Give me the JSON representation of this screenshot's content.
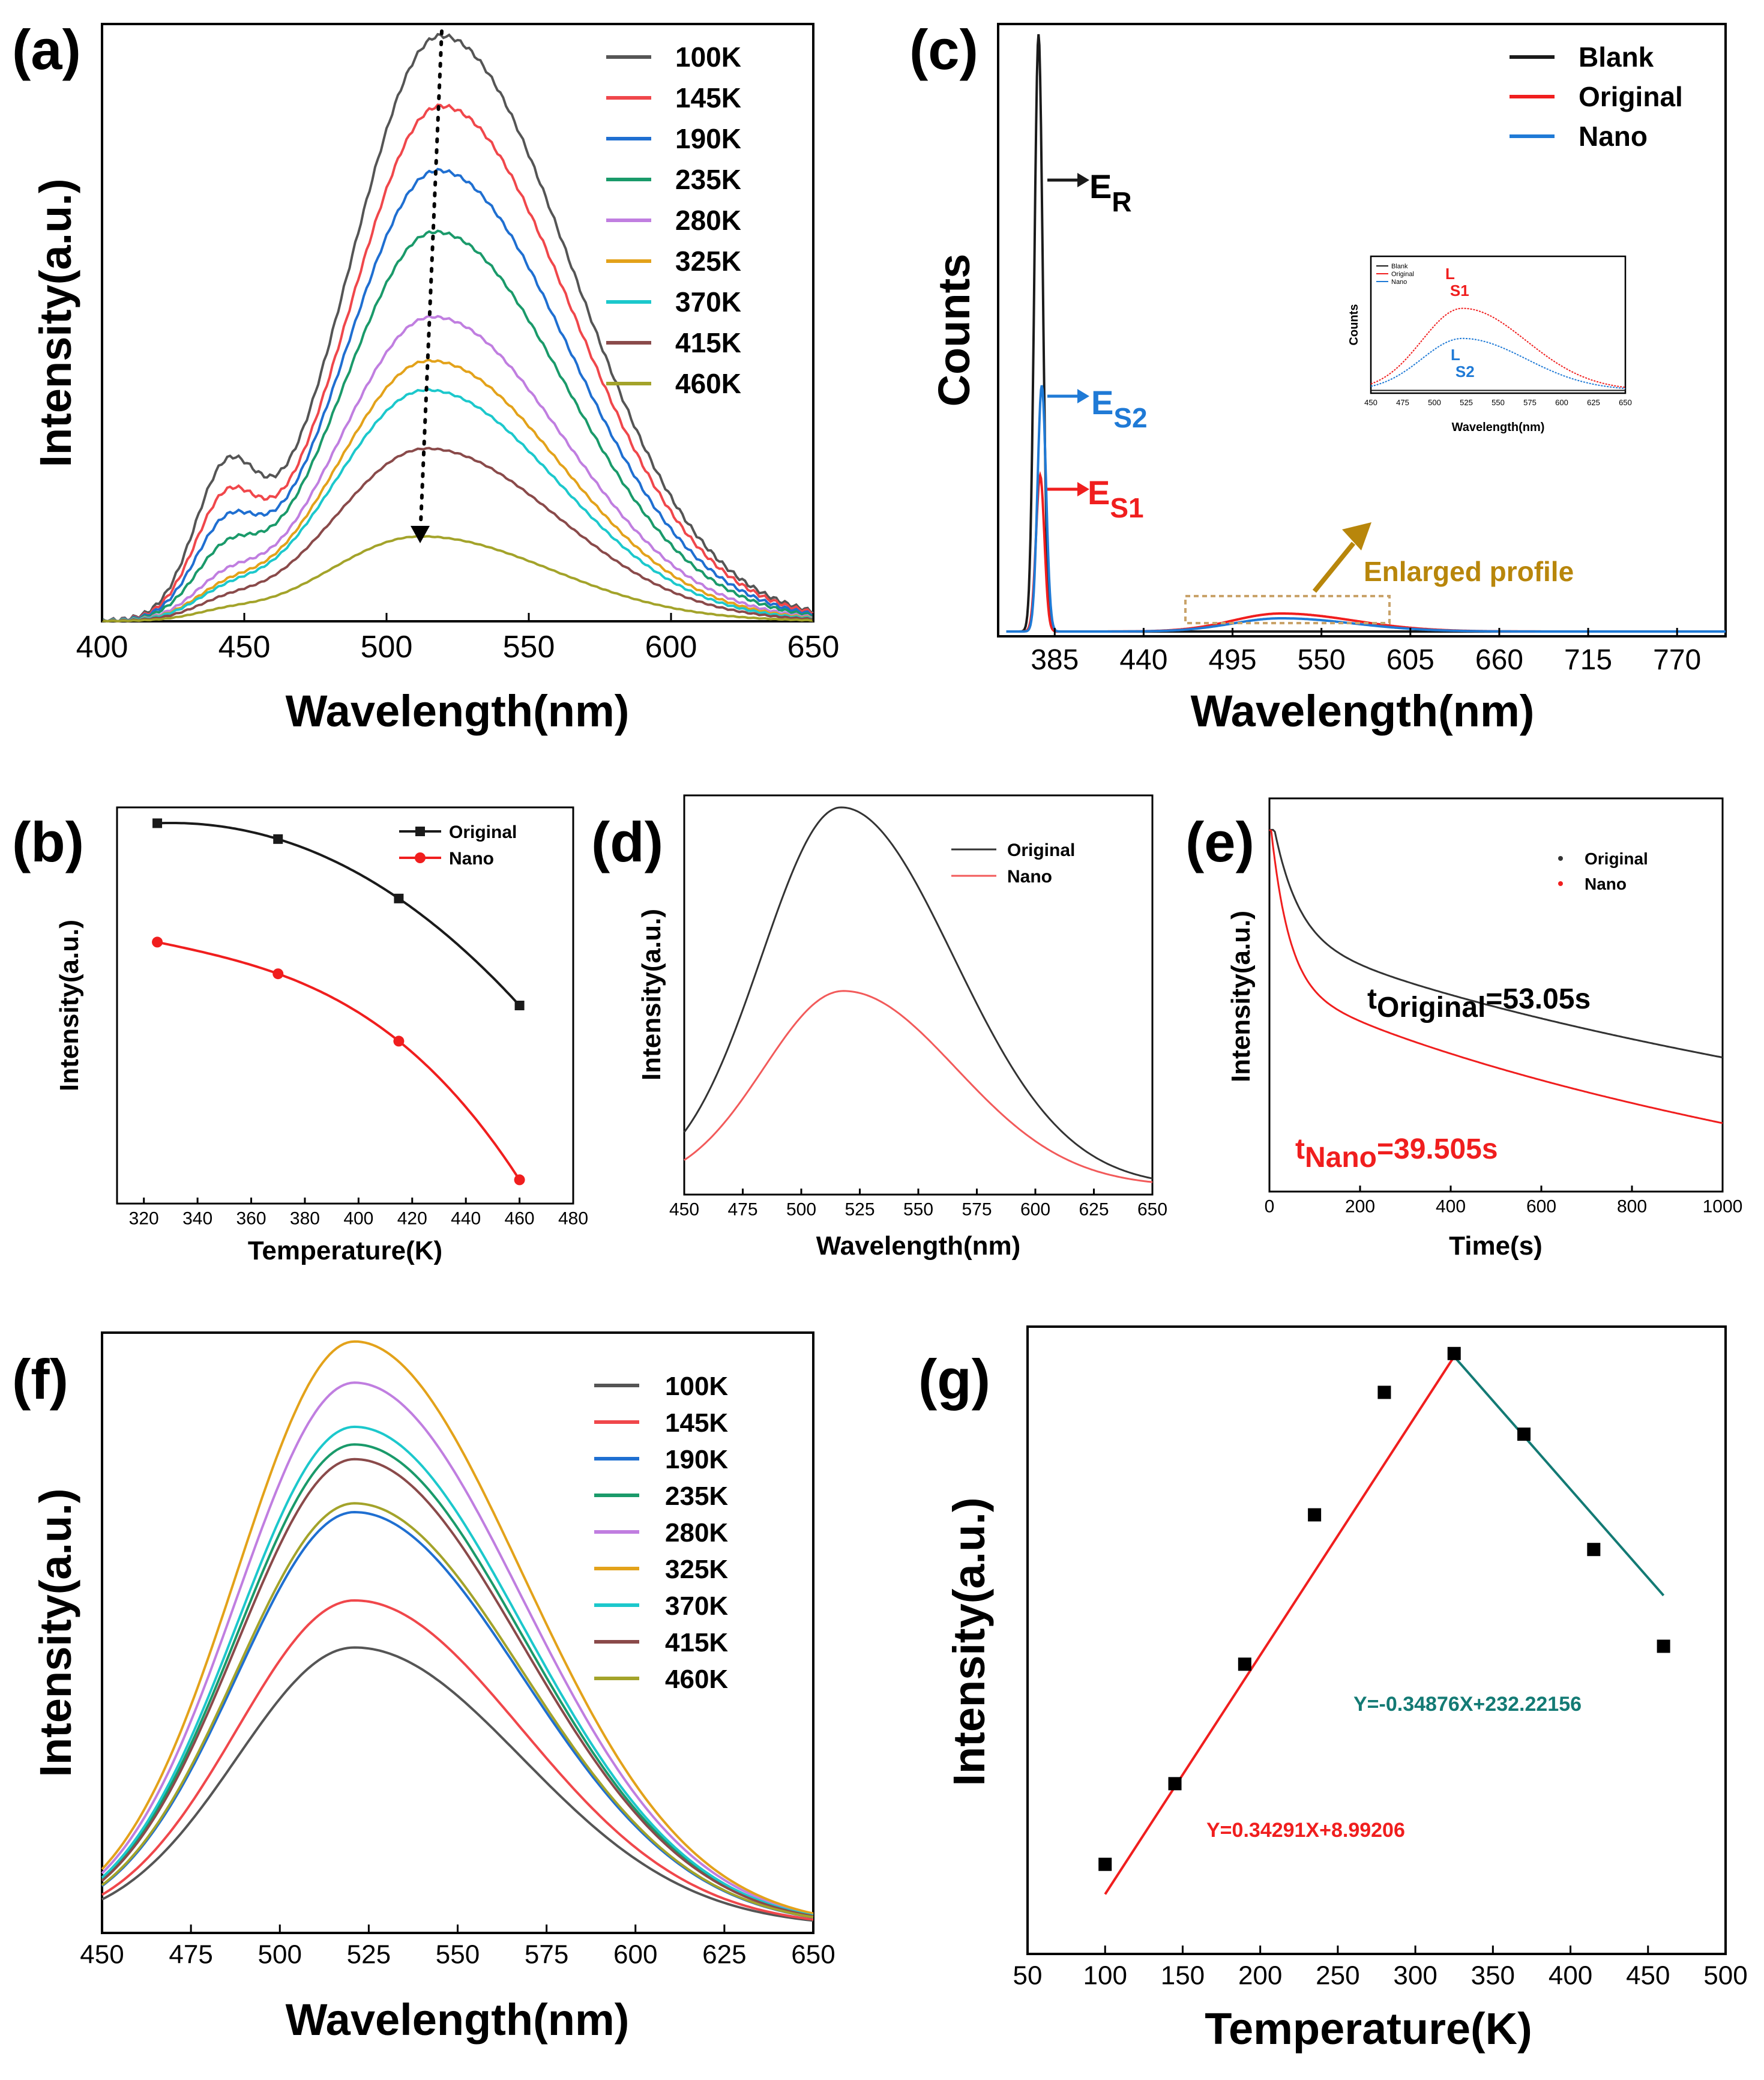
{
  "figure": {
    "panels": {
      "a": {
        "label": "(a)"
      },
      "b": {
        "label": "(b)"
      },
      "c": {
        "label": "(c)"
      },
      "d": {
        "label": "(d)"
      },
      "e": {
        "label": "(e)"
      },
      "f": {
        "label": "(f)"
      },
      "g": {
        "label": "(g)"
      }
    },
    "colors": {
      "100K": "#555555",
      "145K": "#f0474b",
      "190K": "#1f6fd1",
      "235K": "#1a9a6a",
      "280K": "#c07ee0",
      "325K": "#e3a21a",
      "370K": "#1cc8cc",
      "415K": "#8a4a4a",
      "460K": "#a3a32a",
      "black": "#1a1a1a",
      "red": "#f01e1e",
      "blue": "#1f7ad6",
      "teal": "#137a74",
      "gold": "#b8860b"
    }
  },
  "chart_data": [
    {
      "id": "a",
      "type": "line",
      "title": "",
      "xlabel": "Wavelength(nm)",
      "ylabel": "Intensity(a.u.)",
      "xlim": [
        400,
        650
      ],
      "ylim": [
        0,
        1.0
      ],
      "xticks": [
        400,
        450,
        500,
        550,
        600,
        650
      ],
      "series": [
        {
          "name": "100K",
          "peak": 1.0,
          "center": 519,
          "shoulder": 0.215
        },
        {
          "name": "145K",
          "peak": 0.88,
          "center": 519,
          "shoulder": 0.17
        },
        {
          "name": "190K",
          "peak": 0.77,
          "center": 518,
          "shoulder": 0.13
        },
        {
          "name": "235K",
          "peak": 0.665,
          "center": 517,
          "shoulder": 0.09
        },
        {
          "name": "280K",
          "peak": 0.52,
          "center": 516,
          "shoulder": 0.05
        },
        {
          "name": "325K",
          "peak": 0.445,
          "center": 515,
          "shoulder": 0.035
        },
        {
          "name": "370K",
          "peak": 0.395,
          "center": 514,
          "shoulder": 0.03
        },
        {
          "name": "415K",
          "peak": 0.295,
          "center": 514,
          "shoulder": 0.02
        },
        {
          "name": "460K",
          "peak": 0.145,
          "center": 512,
          "shoulder": 0.01
        }
      ],
      "annotation": "dotted arrow showing peak decrease from 100K to 460K"
    },
    {
      "id": "b",
      "type": "line",
      "xlabel": "Temperature(K)",
      "ylabel": "Intensity(a.u.)",
      "xlim": [
        310,
        480
      ],
      "ylim": [
        0,
        1.0
      ],
      "xticks": [
        320,
        340,
        360,
        380,
        400,
        420,
        440,
        460,
        480
      ],
      "legend": [
        "Original",
        "Nano"
      ],
      "series": [
        {
          "name": "Original",
          "x": [
            325,
            370,
            415,
            460
          ],
          "y": [
            0.96,
            0.92,
            0.77,
            0.5
          ]
        },
        {
          "name": "Nano",
          "x": [
            325,
            370,
            415,
            460
          ],
          "y": [
            0.66,
            0.58,
            0.41,
            0.06
          ]
        }
      ]
    },
    {
      "id": "c",
      "type": "line",
      "xlabel": "Wavelength(nm)",
      "ylabel": "Counts",
      "xlim": [
        350,
        800
      ],
      "ylim": [
        0,
        1.0
      ],
      "xticks": [
        385,
        440,
        495,
        550,
        605,
        660,
        715,
        770
      ],
      "legend": [
        "Blank",
        "Original",
        "Nano"
      ],
      "series": [
        {
          "name": "Blank",
          "peak_x": 375,
          "peak_y": 0.995,
          "em": 0.0
        },
        {
          "name": "Original",
          "peak_x": 376,
          "peak_y": 0.26,
          "em": 0.03
        },
        {
          "name": "Nano",
          "peak_x": 377,
          "peak_y": 0.41,
          "em": 0.022
        }
      ],
      "annotations": {
        "er": {
          "main": "E",
          "sub": "R"
        },
        "es2": {
          "main": "E",
          "sub": "S2"
        },
        "es1": {
          "main": "E",
          "sub": "S1"
        },
        "enlarged": "Enlarged profile"
      },
      "inset": {
        "xlabel": "Wavelength(nm)",
        "ylabel": "Counts",
        "xticks": [
          450,
          475,
          500,
          525,
          550,
          575,
          600,
          625,
          650
        ],
        "legend": [
          "Blank",
          "Original",
          "Nano"
        ],
        "ls1": {
          "main": "L",
          "sub": "S1"
        },
        "ls2": {
          "main": "L",
          "sub": "S2"
        }
      }
    },
    {
      "id": "d",
      "type": "line",
      "xlabel": "Wavelength(nm)",
      "ylabel": "Intensity(a.u.)",
      "xlim": [
        450,
        650
      ],
      "ylim": [
        0,
        1.0
      ],
      "xticks": [
        450,
        475,
        500,
        525,
        550,
        575,
        600,
        625,
        650
      ],
      "legend": [
        "Original",
        "Nano"
      ],
      "series": [
        {
          "name": "Original",
          "peak": 0.95,
          "center": 517
        },
        {
          "name": "Nano",
          "peak": 0.49,
          "center": 518
        }
      ]
    },
    {
      "id": "e",
      "type": "line",
      "xlabel": "Time(s)",
      "ylabel": "Intensity(a.u.)",
      "xlim": [
        0,
        1000
      ],
      "ylim": [
        0,
        1.0
      ],
      "xticks": [
        0,
        200,
        400,
        600,
        800,
        1000
      ],
      "legend": [
        "Original",
        "Nano"
      ],
      "series": [
        {
          "name": "Original",
          "tau": 53.05,
          "end": 0.29
        },
        {
          "name": "Nano",
          "tau": 39.505,
          "end": 0.11
        }
      ],
      "labels": {
        "orig": {
          "main": "t",
          "sub": "Original",
          "rest": "=53.05s"
        },
        "nano": {
          "main": "t",
          "sub": "Nano",
          "rest": "=39.505s"
        }
      }
    },
    {
      "id": "f",
      "type": "line",
      "xlabel": "Wavelength(nm)",
      "ylabel": "Intensity(a.u.)",
      "xlim": [
        450,
        650
      ],
      "ylim": [
        0,
        1.0
      ],
      "xticks": [
        450,
        475,
        500,
        525,
        550,
        575,
        600,
        625,
        650
      ],
      "series": [
        {
          "name": "100K",
          "peak": 0.475
        },
        {
          "name": "145K",
          "peak": 0.555
        },
        {
          "name": "190K",
          "peak": 0.705
        },
        {
          "name": "235K",
          "peak": 0.82
        },
        {
          "name": "280K",
          "peak": 0.925
        },
        {
          "name": "325K",
          "peak": 0.995
        },
        {
          "name": "370K",
          "peak": 0.85
        },
        {
          "name": "415K",
          "peak": 0.795
        },
        {
          "name": "460K",
          "peak": 0.72
        }
      ]
    },
    {
      "id": "g",
      "type": "scatter",
      "xlabel": "Temperature(K)",
      "ylabel": "Intensity(a.u.)",
      "xlim": [
        50,
        500
      ],
      "ylim": [
        20,
        125
      ],
      "xticks": [
        50,
        100,
        150,
        200,
        250,
        300,
        350,
        400,
        450,
        500
      ],
      "points": {
        "x": [
          100,
          145,
          190,
          235,
          280,
          325,
          370,
          415,
          460
        ],
        "y": [
          35,
          48.5,
          68.5,
          93.5,
          114,
          120.5,
          107,
          87.7,
          71.5
        ]
      },
      "fits": [
        {
          "label": "Y=0.34291X+8.99206",
          "x": [
            100,
            325
          ],
          "y": [
            30,
            120
          ]
        },
        {
          "label": "Y=-0.34876X+232.22156",
          "x": [
            325,
            460
          ],
          "y": [
            120,
            80
          ]
        }
      ]
    }
  ]
}
